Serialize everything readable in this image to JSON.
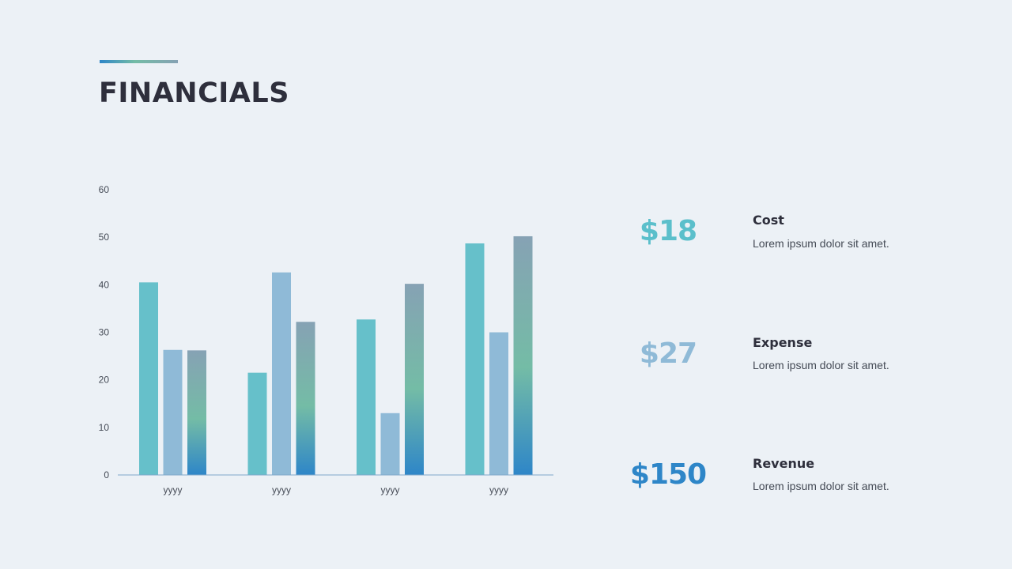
{
  "title": "FINANCIALS",
  "chart_data": {
    "type": "bar",
    "categories": [
      "yyyy",
      "yyyy",
      "yyyy",
      "yyyy"
    ],
    "series": [
      {
        "values": [
          40.5,
          21.5,
          32.7,
          48.7
        ]
      },
      {
        "values": [
          26.3,
          42.6,
          13.0,
          30.0
        ]
      },
      {
        "values": [
          26.2,
          32.2,
          40.2,
          50.2
        ]
      }
    ],
    "ylim": [
      0,
      60
    ],
    "yticks": [
      0,
      10,
      20,
      30,
      40,
      50,
      60
    ],
    "grid": false,
    "colors": [
      "#66c0ca",
      "#8fbad7",
      "gradient #2e86c8 → #74bca6 → #86a2b4"
    ]
  },
  "stats": [
    {
      "value": "$18",
      "label": "Cost",
      "description": "Lorem ipsum dolor sit amet.",
      "color": "#5bbfcb"
    },
    {
      "value": "$27",
      "label": "Expense",
      "description": "Lorem ipsum dolor sit amet.",
      "color": "#8fbad7"
    },
    {
      "value": "$150",
      "label": "Revenue",
      "description": "Lorem ipsum dolor sit amet.",
      "color": "#2e86c8"
    }
  ]
}
